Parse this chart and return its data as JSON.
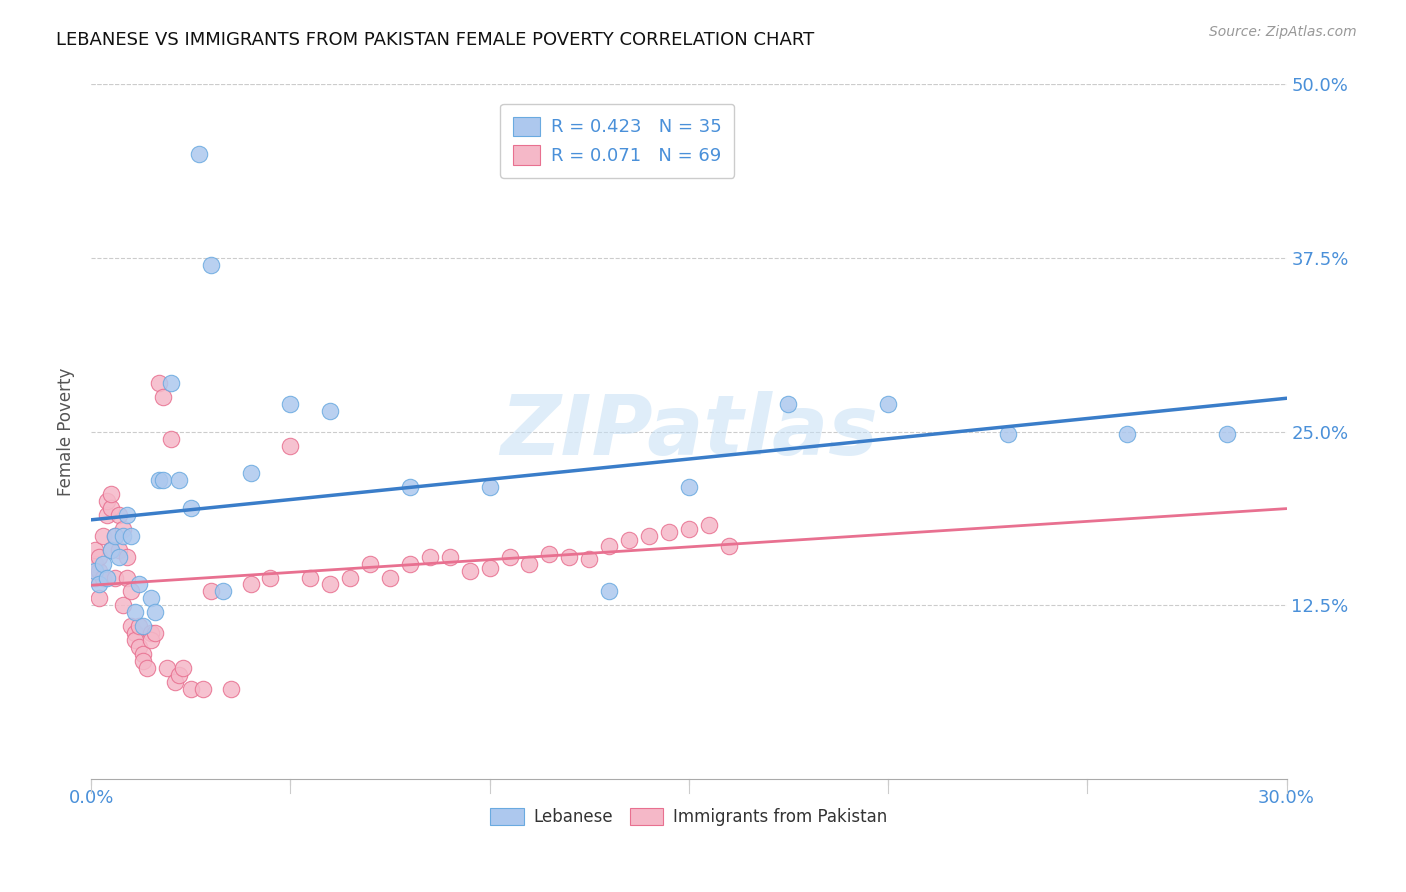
{
  "title": "LEBANESE VS IMMIGRANTS FROM PAKISTAN FEMALE POVERTY CORRELATION CHART",
  "source": "Source: ZipAtlas.com",
  "xlabel": "",
  "ylabel": "Female Poverty",
  "xlim": [
    0.0,
    0.3
  ],
  "ylim": [
    0.0,
    0.5
  ],
  "xticks": [
    0.0,
    0.05,
    0.1,
    0.15,
    0.2,
    0.25,
    0.3
  ],
  "yticks": [
    0.0,
    0.125,
    0.25,
    0.375,
    0.5
  ],
  "yticklabels_left": [
    "",
    "12.5%",
    "25.0%",
    "37.5%",
    "50.0%"
  ],
  "yticklabels_right": [
    "",
    "12.5%",
    "25.0%",
    "37.5%",
    "50.0%"
  ],
  "lebanese_R": 0.423,
  "lebanese_N": 35,
  "pakistan_R": 0.071,
  "pakistan_N": 69,
  "lebanese_color": "#adc8ee",
  "lebanese_edge_color": "#6aaae0",
  "lebanese_line_color": "#3a7dc9",
  "pakistan_color": "#f5b8c8",
  "pakistan_edge_color": "#e87090",
  "pakistan_line_color": "#e87090",
  "legend_label_1": "Lebanese",
  "legend_label_2": "Immigrants from Pakistan",
  "watermark": "ZIPatlas",
  "grid_color": "#cccccc",
  "lebanese_x": [
    0.001,
    0.002,
    0.003,
    0.004,
    0.005,
    0.006,
    0.007,
    0.008,
    0.009,
    0.01,
    0.011,
    0.012,
    0.013,
    0.015,
    0.016,
    0.017,
    0.018,
    0.02,
    0.022,
    0.025,
    0.027,
    0.03,
    0.033,
    0.04,
    0.05,
    0.06,
    0.08,
    0.1,
    0.13,
    0.15,
    0.175,
    0.2,
    0.23,
    0.26,
    0.285
  ],
  "lebanese_y": [
    0.15,
    0.14,
    0.155,
    0.145,
    0.165,
    0.175,
    0.16,
    0.175,
    0.19,
    0.175,
    0.12,
    0.14,
    0.11,
    0.13,
    0.12,
    0.215,
    0.215,
    0.285,
    0.215,
    0.195,
    0.45,
    0.37,
    0.135,
    0.22,
    0.27,
    0.265,
    0.21,
    0.21,
    0.135,
    0.21,
    0.27,
    0.27,
    0.248,
    0.248,
    0.248
  ],
  "pakistan_x": [
    0.001,
    0.001,
    0.001,
    0.002,
    0.002,
    0.002,
    0.003,
    0.003,
    0.004,
    0.004,
    0.005,
    0.005,
    0.005,
    0.006,
    0.006,
    0.007,
    0.007,
    0.008,
    0.008,
    0.009,
    0.009,
    0.01,
    0.01,
    0.011,
    0.011,
    0.012,
    0.012,
    0.013,
    0.013,
    0.014,
    0.015,
    0.015,
    0.016,
    0.017,
    0.018,
    0.019,
    0.02,
    0.021,
    0.022,
    0.023,
    0.025,
    0.028,
    0.03,
    0.035,
    0.04,
    0.045,
    0.05,
    0.055,
    0.06,
    0.065,
    0.07,
    0.075,
    0.08,
    0.085,
    0.09,
    0.095,
    0.1,
    0.105,
    0.11,
    0.115,
    0.12,
    0.125,
    0.13,
    0.135,
    0.14,
    0.145,
    0.15,
    0.155,
    0.16
  ],
  "pakistan_y": [
    0.145,
    0.155,
    0.165,
    0.13,
    0.15,
    0.16,
    0.175,
    0.145,
    0.19,
    0.2,
    0.165,
    0.195,
    0.205,
    0.175,
    0.145,
    0.19,
    0.165,
    0.125,
    0.18,
    0.145,
    0.16,
    0.135,
    0.11,
    0.105,
    0.1,
    0.11,
    0.095,
    0.09,
    0.085,
    0.08,
    0.105,
    0.1,
    0.105,
    0.285,
    0.275,
    0.08,
    0.245,
    0.07,
    0.075,
    0.08,
    0.065,
    0.065,
    0.135,
    0.065,
    0.14,
    0.145,
    0.24,
    0.145,
    0.14,
    0.145,
    0.155,
    0.145,
    0.155,
    0.16,
    0.16,
    0.15,
    0.152,
    0.16,
    0.155,
    0.162,
    0.16,
    0.158,
    0.168,
    0.172,
    0.175,
    0.178,
    0.18,
    0.183,
    0.168
  ]
}
